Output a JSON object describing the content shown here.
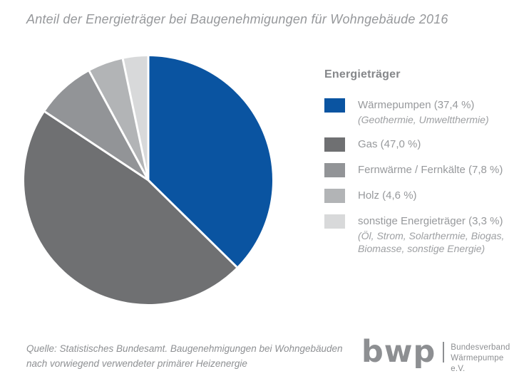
{
  "title": "Anteil der Energieträger bei Baugenehmigungen für Wohngebäude 2016",
  "legend": {
    "heading": "Energieträger",
    "items": [
      {
        "label": "Wärmepumpen (37,4 %)",
        "sublabel": "(Geothermie, Umweltthermie)",
        "color": "#0a54a1"
      },
      {
        "label": "Gas (47,0 %)",
        "color": "#6f7072"
      },
      {
        "label": "Fernwärme / Fernkälte (7,8 %)",
        "color": "#929497"
      },
      {
        "label": "Holz (4,6 %)",
        "color": "#b2b4b6"
      },
      {
        "label": "sonstige Energieträger (3,3 %)",
        "sublabel": "(Öl, Strom, Solarthermie, Biogas, Biomasse, sonstige Energie)",
        "color": "#d8d9da"
      }
    ]
  },
  "source": {
    "line1": "Quelle: Statistisches Bundesamt. Baugenehmigungen bei Wohngebäuden",
    "line2": "nach vorwiegend verwendeter primärer Heizenergie"
  },
  "logo": {
    "text": "bwp",
    "org_line1": "Bundesverband",
    "org_line2": "Wärmepumpe e.V."
  },
  "chart_data": {
    "type": "pie",
    "title": "Anteil der Energieträger bei Baugenehmigungen für Wohngebäude 2016",
    "categories": [
      "Wärmepumpen",
      "Gas",
      "Fernwärme / Fernkälte",
      "Holz",
      "sonstige Energieträger"
    ],
    "values": [
      37.4,
      47.0,
      7.8,
      4.6,
      3.3
    ],
    "colors": [
      "#0a54a1",
      "#6f7072",
      "#929497",
      "#b2b4b6",
      "#d8d9da"
    ],
    "start_angle_deg": 0,
    "direction": "clockwise",
    "separator_color": "#ffffff",
    "legend_position": "right"
  }
}
